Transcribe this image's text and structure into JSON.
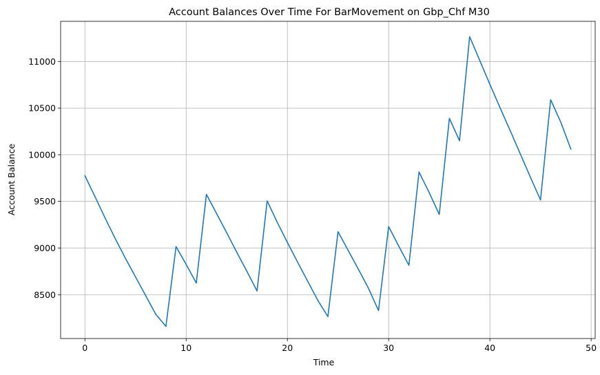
{
  "chart_data": {
    "type": "line",
    "title": "Account Balances Over Time For BarMovement on Gbp_Chf M30",
    "xlabel": "Time",
    "ylabel": "Account Balance",
    "xlim": [
      -2.4,
      50.4
    ],
    "ylim": [
      8030,
      11430
    ],
    "xticks": [
      0,
      10,
      20,
      30,
      40,
      50
    ],
    "yticks": [
      8500,
      9000,
      9500,
      10000,
      10500,
      11000
    ],
    "grid": true,
    "line_color": "#1f77b4",
    "series": [
      {
        "x": [
          0,
          1,
          2,
          3,
          4,
          5,
          6,
          7,
          8,
          9,
          10,
          11,
          12,
          13,
          14,
          15,
          16,
          17,
          18,
          19,
          20,
          21,
          22,
          23,
          24,
          25,
          26,
          27,
          28,
          29,
          30,
          31,
          32,
          33,
          34,
          35,
          36,
          37,
          38,
          39,
          40,
          41,
          42,
          43,
          44,
          45,
          46,
          47,
          48
        ],
        "y": [
          9775,
          9550,
          9320,
          9100,
          8890,
          8690,
          8490,
          8290,
          8160,
          9015,
          8825,
          8625,
          9575,
          9370,
          9165,
          8955,
          8750,
          8540,
          9505,
          9275,
          9060,
          8850,
          8645,
          8440,
          8265,
          9175,
          8975,
          8775,
          8570,
          8330,
          9230,
          9020,
          8815,
          9815,
          9595,
          9360,
          10390,
          10150,
          11265,
          11010,
          10755,
          10505,
          10260,
          10010,
          9760,
          9515,
          10590,
          10350,
          10060
        ]
      }
    ]
  }
}
